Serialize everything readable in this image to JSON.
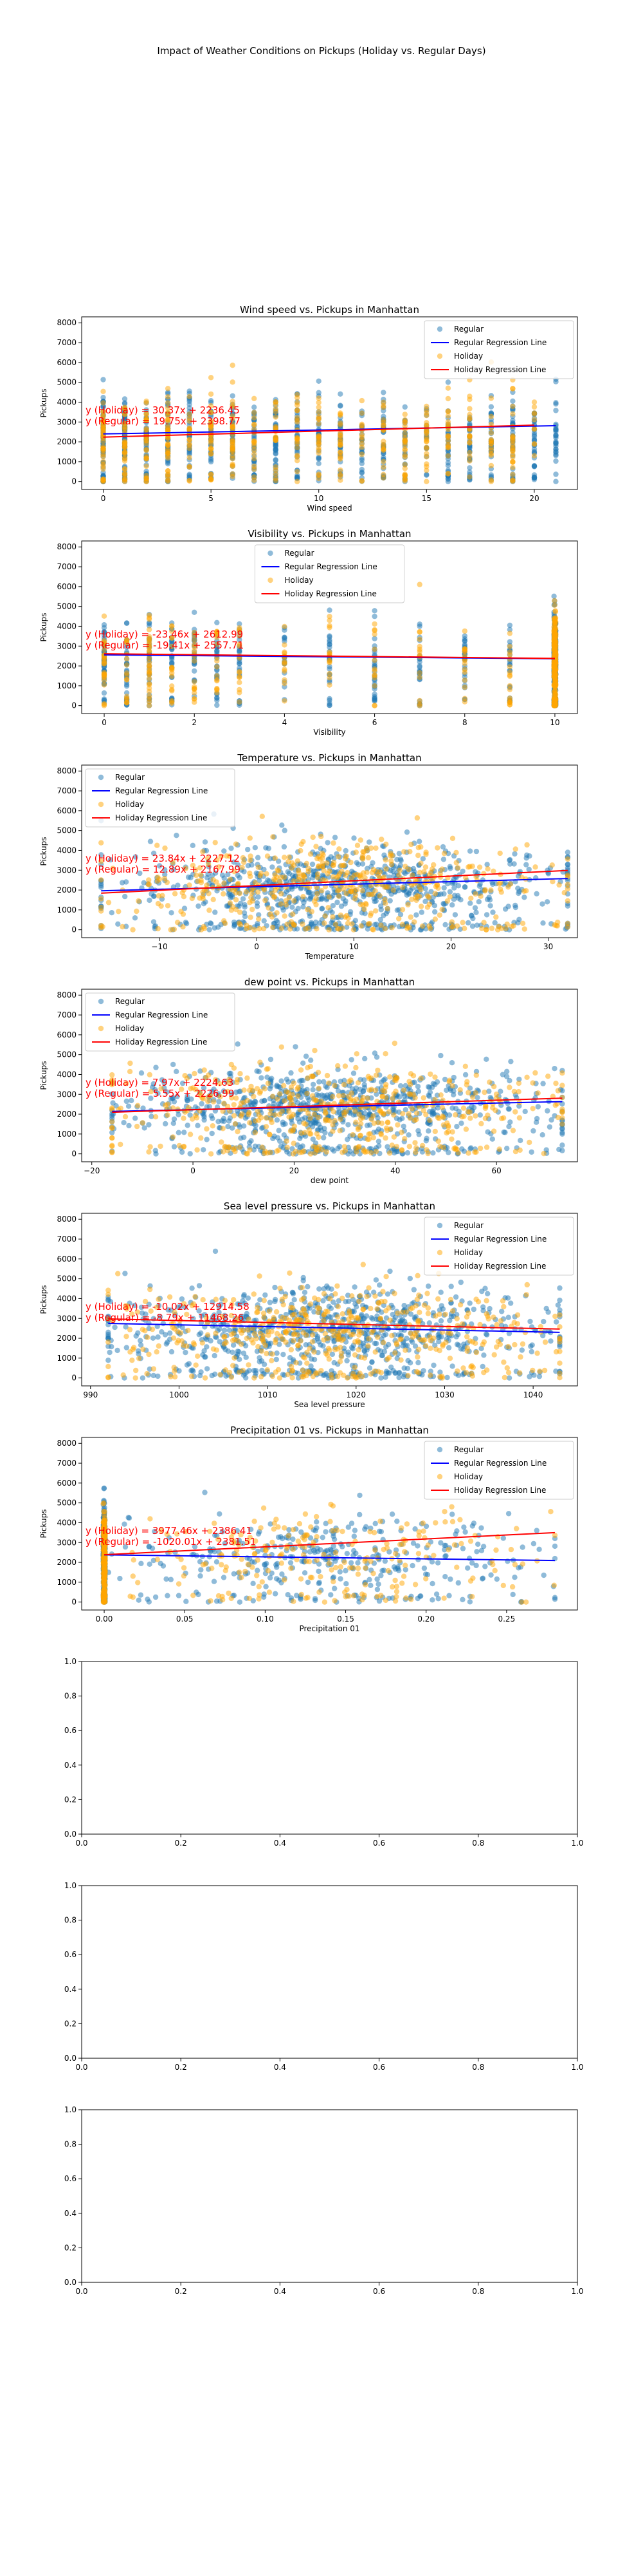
{
  "figure": {
    "suptitle": "Impact of Weather Conditions on Pickups (Holiday vs. Regular Days)"
  },
  "colors": {
    "regular": "#1f77b4",
    "holiday": "#ffa500",
    "regular_line": "#0000ff",
    "holiday_line": "#ff0000"
  },
  "chart_data": [
    {
      "type": "scatter",
      "title": "Wind speed vs. Pickups in Manhattan",
      "xlabel": "Wind speed",
      "ylabel": "Pickups",
      "xlim": [
        -1,
        22
      ],
      "ylim": [
        -400,
        8300
      ],
      "xticks": [
        0,
        5,
        10,
        15,
        20
      ],
      "yticks": [
        0,
        1000,
        2000,
        3000,
        4000,
        5000,
        6000,
        7000,
        8000
      ],
      "x_discrete": [
        0,
        1,
        2,
        3,
        4,
        5,
        6,
        7,
        8,
        9,
        10,
        11,
        12,
        13,
        14,
        15,
        16,
        17,
        18,
        19,
        20,
        21
      ],
      "x_range": [
        0,
        21
      ],
      "holiday_x_max": 20,
      "legend": {
        "position": "upper right",
        "entries": [
          "Regular",
          "Regular Regression Line",
          "Holiday",
          "Holiday Regression Line"
        ]
      },
      "annotations": [
        "y (Holiday) = 30.37x + 2236.45",
        "y (Regular) = 19.75x + 2398.77"
      ],
      "series": [
        {
          "name": "Regular",
          "kind": "scatter",
          "center": 2300,
          "spread": 1700
        },
        {
          "name": "Holiday",
          "kind": "scatter",
          "center": 2300,
          "spread": 1800
        },
        {
          "name": "Regular Regression Line",
          "kind": "line",
          "slope": 19.75,
          "intercept": 2398.77,
          "x_range": [
            0,
            21
          ]
        },
        {
          "name": "Holiday Regression Line",
          "kind": "line",
          "slope": 30.37,
          "intercept": 2236.45,
          "x_range": [
            0,
            20
          ]
        }
      ]
    },
    {
      "type": "scatter",
      "title": "Visibility vs. Pickups in Manhattan",
      "xlabel": "Visibility",
      "ylabel": "Pickups",
      "xlim": [
        -0.5,
        10.5
      ],
      "ylim": [
        -400,
        8300
      ],
      "xticks": [
        0,
        2,
        4,
        6,
        8,
        10
      ],
      "yticks": [
        0,
        1000,
        2000,
        3000,
        4000,
        5000,
        6000,
        7000,
        8000
      ],
      "x_discrete": [
        0,
        0.5,
        1,
        1.5,
        2,
        2.5,
        3,
        4,
        5,
        6,
        7,
        8,
        9,
        10
      ],
      "x_range": [
        0,
        10
      ],
      "dense_at": 10,
      "legend": {
        "position": "upper center",
        "entries": [
          "Regular",
          "Regular Regression Line",
          "Holiday",
          "Holiday Regression Line"
        ]
      },
      "annotations": [
        "y (Holiday) = -23.46x + 2612.99",
        "y (Regular) = -19.41x + 2557.71"
      ],
      "series": [
        {
          "name": "Regular",
          "kind": "scatter",
          "center": 2400,
          "spread": 1700
        },
        {
          "name": "Holiday",
          "kind": "scatter",
          "center": 2400,
          "spread": 1800
        },
        {
          "name": "Regular Regression Line",
          "kind": "line",
          "slope": -19.41,
          "intercept": 2557.71,
          "x_range": [
            0,
            10
          ]
        },
        {
          "name": "Holiday Regression Line",
          "kind": "line",
          "slope": -23.46,
          "intercept": 2612.99,
          "x_range": [
            0,
            10
          ]
        }
      ]
    },
    {
      "type": "scatter",
      "title": "Temperature vs. Pickups in Manhattan",
      "xlabel": "Temperature",
      "ylabel": "Pickups",
      "xlim": [
        -18,
        33
      ],
      "ylim": [
        -400,
        8300
      ],
      "xticks": [
        -10,
        0,
        10,
        20,
        30
      ],
      "yticks": [
        0,
        1000,
        2000,
        3000,
        4000,
        5000,
        6000,
        7000,
        8000
      ],
      "x_range": [
        -16,
        32
      ],
      "x_continuous": true,
      "legend": {
        "position": "upper left",
        "entries": [
          "Regular",
          "Regular Regression Line",
          "Holiday",
          "Holiday Regression Line"
        ]
      },
      "annotations": [
        "y (Holiday) = 23.84x + 2227.12",
        "y (Regular) = 12.89x + 2167.99"
      ],
      "series": [
        {
          "name": "Regular",
          "kind": "scatter",
          "center": 2300,
          "spread": 1700
        },
        {
          "name": "Holiday",
          "kind": "scatter",
          "center": 2300,
          "spread": 1800
        },
        {
          "name": "Regular Regression Line",
          "kind": "line",
          "slope": 12.89,
          "intercept": 2167.99,
          "x_range": [
            -16,
            32
          ]
        },
        {
          "name": "Holiday Regression Line",
          "kind": "line",
          "slope": 23.84,
          "intercept": 2227.12,
          "x_range": [
            -16,
            32
          ]
        }
      ]
    },
    {
      "type": "scatter",
      "title": "dew point vs. Pickups in Manhattan",
      "xlabel": "dew point",
      "ylabel": "Pickups",
      "xlim": [
        -22,
        76
      ],
      "ylim": [
        -400,
        8300
      ],
      "xticks": [
        -20,
        0,
        20,
        40,
        60
      ],
      "yticks": [
        0,
        1000,
        2000,
        3000,
        4000,
        5000,
        6000,
        7000,
        8000
      ],
      "x_range": [
        -16,
        73
      ],
      "x_continuous": true,
      "legend": {
        "position": "upper left",
        "entries": [
          "Regular",
          "Regular Regression Line",
          "Holiday",
          "Holiday Regression Line"
        ]
      },
      "annotations": [
        "y (Holiday) = 7.97x + 2224.63",
        "y (Regular) = 5.55x + 2226.99"
      ],
      "series": [
        {
          "name": "Regular",
          "kind": "scatter",
          "center": 2400,
          "spread": 1700
        },
        {
          "name": "Holiday",
          "kind": "scatter",
          "center": 2400,
          "spread": 1800
        },
        {
          "name": "Regular Regression Line",
          "kind": "line",
          "slope": 5.55,
          "intercept": 2226.99,
          "x_range": [
            -16,
            73
          ]
        },
        {
          "name": "Holiday Regression Line",
          "kind": "line",
          "slope": 7.97,
          "intercept": 2224.63,
          "x_range": [
            -16,
            73
          ]
        }
      ]
    },
    {
      "type": "scatter",
      "title": "Sea level pressure vs. Pickups in Manhattan",
      "xlabel": "Sea level pressure",
      "ylabel": "Pickups",
      "xlim": [
        989,
        1045
      ],
      "ylim": [
        -400,
        8300
      ],
      "xticks": [
        990,
        1000,
        1010,
        1020,
        1030,
        1040
      ],
      "yticks": [
        0,
        1000,
        2000,
        3000,
        4000,
        5000,
        6000,
        7000,
        8000
      ],
      "x_range": [
        992,
        1043
      ],
      "x_continuous": true,
      "legend": {
        "position": "upper right",
        "entries": [
          "Regular",
          "Regular Regression Line",
          "Holiday",
          "Holiday Regression Line"
        ]
      },
      "annotations": [
        "y (Holiday) = -10.02x + 12914.58",
        "y (Regular) = -8.79x + 11468.26"
      ],
      "series": [
        {
          "name": "Regular",
          "kind": "scatter",
          "center": 2400,
          "spread": 1700
        },
        {
          "name": "Holiday",
          "kind": "scatter",
          "center": 2400,
          "spread": 1800
        },
        {
          "name": "Regular Regression Line",
          "kind": "line",
          "slope": -8.79,
          "intercept": 11468.26,
          "x_range": [
            992,
            1043
          ]
        },
        {
          "name": "Holiday Regression Line",
          "kind": "line",
          "slope": -10.02,
          "intercept": 12914.58,
          "x_range": [
            992,
            1043
          ]
        }
      ]
    },
    {
      "type": "scatter",
      "title": "Precipitation 01 vs. Pickups in Manhattan",
      "xlabel": "Precipitation 01",
      "ylabel": "Pickups",
      "xlim": [
        -0.014,
        0.294
      ],
      "ylim": [
        -400,
        8300
      ],
      "xticks": [
        0.0,
        0.05,
        0.1,
        0.15,
        0.2,
        0.25
      ],
      "xtick_labels": [
        "0.00",
        "0.05",
        "0.10",
        "0.15",
        "0.20",
        "0.25"
      ],
      "yticks": [
        0,
        1000,
        2000,
        3000,
        4000,
        5000,
        6000,
        7000,
        8000
      ],
      "x_range": [
        0,
        0.28
      ],
      "dense_at": 0,
      "legend": {
        "position": "upper right",
        "entries": [
          "Regular",
          "Regular Regression Line",
          "Holiday",
          "Holiday Regression Line"
        ]
      },
      "annotations": [
        "y (Holiday) = 3977.46x + 2386.41",
        "y (Regular) = -1020.01x + 2381.51"
      ],
      "series": [
        {
          "name": "Regular",
          "kind": "scatter",
          "center": 2400,
          "spread": 1700
        },
        {
          "name": "Holiday",
          "kind": "scatter",
          "center": 2400,
          "spread": 1800
        },
        {
          "name": "Regular Regression Line",
          "kind": "line",
          "slope": -1020.01,
          "intercept": 2381.51,
          "x_range": [
            0,
            0.28
          ]
        },
        {
          "name": "Holiday Regression Line",
          "kind": "line",
          "slope": 3977.46,
          "intercept": 2386.41,
          "x_range": [
            0,
            0.28
          ]
        }
      ]
    },
    {
      "type": "scatter",
      "empty": true,
      "title": "",
      "xlabel": "",
      "ylabel": "",
      "xlim": [
        0,
        1
      ],
      "ylim": [
        0,
        1
      ],
      "xticks": [
        0.0,
        0.2,
        0.4,
        0.6,
        0.8,
        1.0
      ],
      "xtick_labels": [
        "0.0",
        "0.2",
        "0.4",
        "0.6",
        "0.8",
        "1.0"
      ],
      "yticks": [
        0.0,
        0.2,
        0.4,
        0.6,
        0.8,
        1.0
      ],
      "ytick_labels": [
        "0.0",
        "0.2",
        "0.4",
        "0.6",
        "0.8",
        "1.0"
      ]
    },
    {
      "type": "scatter",
      "empty": true,
      "title": "",
      "xlabel": "",
      "ylabel": "",
      "xlim": [
        0,
        1
      ],
      "ylim": [
        0,
        1
      ],
      "xticks": [
        0.0,
        0.2,
        0.4,
        0.6,
        0.8,
        1.0
      ],
      "xtick_labels": [
        "0.0",
        "0.2",
        "0.4",
        "0.6",
        "0.8",
        "1.0"
      ],
      "yticks": [
        0.0,
        0.2,
        0.4,
        0.6,
        0.8,
        1.0
      ],
      "ytick_labels": [
        "0.0",
        "0.2",
        "0.4",
        "0.6",
        "0.8",
        "1.0"
      ]
    },
    {
      "type": "scatter",
      "empty": true,
      "title": "",
      "xlabel": "",
      "ylabel": "",
      "xlim": [
        0,
        1
      ],
      "ylim": [
        0,
        1
      ],
      "xticks": [
        0.0,
        0.2,
        0.4,
        0.6,
        0.8,
        1.0
      ],
      "xtick_labels": [
        "0.0",
        "0.2",
        "0.4",
        "0.6",
        "0.8",
        "1.0"
      ],
      "yticks": [
        0.0,
        0.2,
        0.4,
        0.6,
        0.8,
        1.0
      ],
      "ytick_labels": [
        "0.0",
        "0.2",
        "0.4",
        "0.6",
        "0.8",
        "1.0"
      ]
    }
  ]
}
